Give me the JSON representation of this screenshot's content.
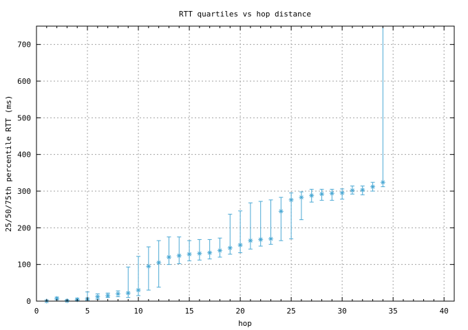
{
  "chart_data": {
    "type": "scatter",
    "title": "RTT quartiles vs hop distance",
    "xlabel": "hop",
    "ylabel": "25/50/75th percentile RTT (ms)",
    "xlim": [
      0,
      41
    ],
    "ylim": [
      0,
      750
    ],
    "xticks": [
      0,
      5,
      10,
      15,
      20,
      25,
      30,
      35,
      40
    ],
    "yticks": [
      0,
      100,
      200,
      300,
      400,
      500,
      600,
      700
    ],
    "grid": true,
    "color": "#4aa8d4",
    "series": [
      {
        "points": [
          {
            "x": 1,
            "p25": 0,
            "p50": 0,
            "p75": 1
          },
          {
            "x": 2,
            "p25": 4,
            "p50": 7,
            "p75": 11
          },
          {
            "x": 3,
            "p25": 0,
            "p50": 1,
            "p75": 3
          },
          {
            "x": 4,
            "p25": 2,
            "p50": 4,
            "p75": 8
          },
          {
            "x": 5,
            "p25": 3,
            "p50": 6,
            "p75": 25
          },
          {
            "x": 6,
            "p25": 5,
            "p50": 12,
            "p75": 20
          },
          {
            "x": 7,
            "p25": 10,
            "p50": 15,
            "p75": 22
          },
          {
            "x": 8,
            "p25": 12,
            "p50": 20,
            "p75": 28
          },
          {
            "x": 9,
            "p25": 10,
            "p50": 22,
            "p75": 93
          },
          {
            "x": 10,
            "p25": 15,
            "p50": 30,
            "p75": 122
          },
          {
            "x": 11,
            "p25": 30,
            "p50": 95,
            "p75": 148
          },
          {
            "x": 12,
            "p25": 38,
            "p50": 105,
            "p75": 165
          },
          {
            "x": 13,
            "p25": 100,
            "p50": 120,
            "p75": 175
          },
          {
            "x": 14,
            "p25": 102,
            "p50": 124,
            "p75": 175
          },
          {
            "x": 15,
            "p25": 110,
            "p50": 128,
            "p75": 165
          },
          {
            "x": 16,
            "p25": 112,
            "p50": 130,
            "p75": 168
          },
          {
            "x": 17,
            "p25": 115,
            "p50": 132,
            "p75": 168
          },
          {
            "x": 18,
            "p25": 120,
            "p50": 138,
            "p75": 172
          },
          {
            "x": 19,
            "p25": 128,
            "p50": 145,
            "p75": 237
          },
          {
            "x": 20,
            "p25": 132,
            "p50": 153,
            "p75": 246
          },
          {
            "x": 21,
            "p25": 142,
            "p50": 165,
            "p75": 268
          },
          {
            "x": 22,
            "p25": 150,
            "p50": 168,
            "p75": 272
          },
          {
            "x": 23,
            "p25": 155,
            "p50": 170,
            "p75": 276
          },
          {
            "x": 24,
            "p25": 165,
            "p50": 245,
            "p75": 283
          },
          {
            "x": 25,
            "p25": 170,
            "p50": 276,
            "p75": 295
          },
          {
            "x": 26,
            "p25": 222,
            "p50": 283,
            "p75": 298
          },
          {
            "x": 27,
            "p25": 270,
            "p50": 288,
            "p75": 305
          },
          {
            "x": 28,
            "p25": 275,
            "p50": 292,
            "p75": 305
          },
          {
            "x": 29,
            "p25": 275,
            "p50": 294,
            "p75": 305
          },
          {
            "x": 30,
            "p25": 278,
            "p50": 295,
            "p75": 306
          },
          {
            "x": 31,
            "p25": 292,
            "p50": 302,
            "p75": 314
          },
          {
            "x": 32,
            "p25": 290,
            "p50": 303,
            "p75": 314
          },
          {
            "x": 33,
            "p25": 300,
            "p50": 312,
            "p75": 324
          },
          {
            "x": 34,
            "p25": 312,
            "p50": 324,
            "p75": 750
          }
        ]
      }
    ]
  }
}
